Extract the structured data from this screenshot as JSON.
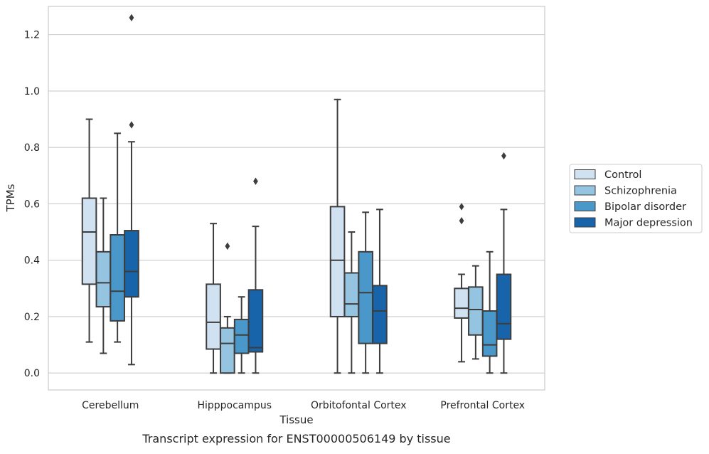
{
  "caption": "Transcript expression for ENST00000506149 by tissue",
  "chart_data": {
    "type": "boxplot",
    "xlabel": "Tissue",
    "ylabel": "TPMs",
    "ylim": [
      -0.06,
      1.3
    ],
    "yticks": [
      0.0,
      0.2,
      0.4,
      0.6,
      0.8,
      1.0,
      1.2
    ],
    "ytick_labels": [
      "0.0",
      "0.2",
      "0.4",
      "0.6",
      "0.8",
      "1.0",
      "1.2"
    ],
    "grid": "horizontal",
    "legend_position": "right",
    "categories": [
      "Cerebellum",
      "Hipppocampus",
      "Orbitofontal Cortex",
      "Prefrontal Cortex"
    ],
    "series": [
      {
        "name": "Control",
        "color": "#d0e1f2",
        "boxes": [
          {
            "whislo": 0.11,
            "q1": 0.315,
            "med": 0.5,
            "q3": 0.62,
            "whishi": 0.9,
            "fliers": []
          },
          {
            "whislo": 0.0,
            "q1": 0.085,
            "med": 0.18,
            "q3": 0.315,
            "whishi": 0.53,
            "fliers": []
          },
          {
            "whislo": 0.0,
            "q1": 0.2,
            "med": 0.4,
            "q3": 0.59,
            "whishi": 0.97,
            "fliers": []
          },
          {
            "whislo": 0.04,
            "q1": 0.195,
            "med": 0.23,
            "q3": 0.3,
            "whishi": 0.35,
            "fliers": [
              0.54,
              0.59
            ]
          }
        ]
      },
      {
        "name": "Schizophrenia",
        "color": "#94c4df",
        "boxes": [
          {
            "whislo": 0.07,
            "q1": 0.235,
            "med": 0.32,
            "q3": 0.43,
            "whishi": 0.62,
            "fliers": []
          },
          {
            "whislo": 0.0,
            "q1": 0.0,
            "med": 0.105,
            "q3": 0.16,
            "whishi": 0.2,
            "fliers": [
              0.45
            ]
          },
          {
            "whislo": 0.0,
            "q1": 0.2,
            "med": 0.245,
            "q3": 0.355,
            "whishi": 0.5,
            "fliers": []
          },
          {
            "whislo": 0.05,
            "q1": 0.135,
            "med": 0.225,
            "q3": 0.305,
            "whishi": 0.38,
            "fliers": []
          }
        ]
      },
      {
        "name": "Bipolar disorder",
        "color": "#4a98c9",
        "boxes": [
          {
            "whislo": 0.11,
            "q1": 0.185,
            "med": 0.29,
            "q3": 0.49,
            "whishi": 0.85,
            "fliers": []
          },
          {
            "whislo": 0.0,
            "q1": 0.07,
            "med": 0.135,
            "q3": 0.19,
            "whishi": 0.27,
            "fliers": []
          },
          {
            "whislo": 0.0,
            "q1": 0.105,
            "med": 0.285,
            "q3": 0.43,
            "whishi": 0.57,
            "fliers": []
          },
          {
            "whislo": 0.0,
            "q1": 0.06,
            "med": 0.1,
            "q3": 0.22,
            "whishi": 0.43,
            "fliers": []
          }
        ]
      },
      {
        "name": "Major depression",
        "color": "#1764ab",
        "boxes": [
          {
            "whislo": 0.03,
            "q1": 0.27,
            "med": 0.36,
            "q3": 0.505,
            "whishi": 0.82,
            "fliers": [
              0.88,
              1.26
            ]
          },
          {
            "whislo": 0.0,
            "q1": 0.075,
            "med": 0.09,
            "q3": 0.295,
            "whishi": 0.52,
            "fliers": [
              0.68
            ]
          },
          {
            "whislo": 0.0,
            "q1": 0.105,
            "med": 0.22,
            "q3": 0.31,
            "whishi": 0.58,
            "fliers": []
          },
          {
            "whislo": 0.0,
            "q1": 0.12,
            "med": 0.175,
            "q3": 0.35,
            "whishi": 0.58,
            "fliers": [
              0.77
            ]
          }
        ]
      }
    ]
  }
}
